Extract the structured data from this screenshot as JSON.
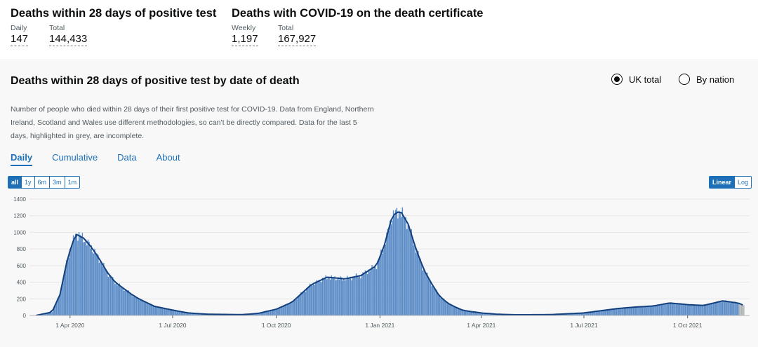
{
  "headline": {
    "left": {
      "title": "Deaths within 28 days of positive test",
      "metrics": [
        {
          "label": "Daily",
          "value": "147"
        },
        {
          "label": "Total",
          "value": "144,433"
        }
      ]
    },
    "right": {
      "title": "Deaths with COVID-19 on the death certificate",
      "metrics": [
        {
          "label": "Weekly",
          "value": "1,197"
        },
        {
          "label": "Total",
          "value": "167,927"
        }
      ]
    }
  },
  "card": {
    "title": "Deaths within 28 days of positive test by date of death",
    "radios": [
      {
        "label": "UK total",
        "selected": true
      },
      {
        "label": "By nation",
        "selected": false
      }
    ],
    "description": "Number of people who died within 28 days of their first positive test for COVID-19. Data from England, Northern Ireland, Scotland and Wales use different methodologies, so can’t be directly compared. Data for the last 5 days, highlighted in grey, are incomplete.",
    "tabs": [
      {
        "label": "Daily",
        "active": true
      },
      {
        "label": "Cumulative",
        "active": false
      },
      {
        "label": "Data",
        "active": false
      },
      {
        "label": "About",
        "active": false
      }
    ],
    "range_buttons": [
      {
        "label": "all",
        "active": true
      },
      {
        "label": "1y",
        "active": false
      },
      {
        "label": "6m",
        "active": false
      },
      {
        "label": "3m",
        "active": false
      },
      {
        "label": "1m",
        "active": false
      }
    ],
    "scale_buttons": [
      {
        "label": "Linear",
        "active": true
      },
      {
        "label": "Log",
        "active": false
      }
    ]
  },
  "colors": {
    "bar": "#5b8cc7",
    "bar_incomplete": "#b1b4b6",
    "line": "#12407f",
    "link": "#1d70b8"
  },
  "chart_data": {
    "type": "bar",
    "title": "",
    "xlabel": "",
    "ylabel": "",
    "ylim": [
      0,
      1400
    ],
    "y_ticks": [
      "0",
      "200",
      "400",
      "600",
      "800",
      "1000",
      "1200",
      "1400"
    ],
    "x_tick_labels": [
      "1 Apr 2020",
      "1 Jul 2020",
      "1 Oct 2020",
      "1 Jan 2021",
      "1 Apr 2021",
      "1 Jul 2021",
      "1 Oct 2021"
    ],
    "series": [
      {
        "kind": "bars",
        "x": [
          "2020-03-02",
          "2020-03-16",
          "2020-03-23",
          "2020-03-30",
          "2020-04-06",
          "2020-04-13",
          "2020-04-20",
          "2020-04-27",
          "2020-05-04",
          "2020-05-11",
          "2020-05-18",
          "2020-05-25",
          "2020-06-01",
          "2020-06-15",
          "2020-07-01",
          "2020-07-15",
          "2020-08-01",
          "2020-09-01",
          "2020-09-15",
          "2020-10-01",
          "2020-10-15",
          "2020-11-01",
          "2020-11-15",
          "2020-12-01",
          "2020-12-15",
          "2020-12-29",
          "2021-01-05",
          "2021-01-12",
          "2021-01-19",
          "2021-01-26",
          "2021-02-02",
          "2021-02-09",
          "2021-02-16",
          "2021-02-23",
          "2021-03-02",
          "2021-03-09",
          "2021-03-16",
          "2021-04-01",
          "2021-04-15",
          "2021-05-01",
          "2021-06-01",
          "2021-07-01",
          "2021-07-15",
          "2021-08-01",
          "2021-08-15",
          "2021-09-01",
          "2021-09-15",
          "2021-10-01",
          "2021-10-15",
          "2021-11-01",
          "2021-11-15",
          "2021-11-20"
        ],
        "values": [
          2,
          40,
          250,
          700,
          980,
          930,
          820,
          680,
          520,
          400,
          330,
          260,
          200,
          110,
          65,
          30,
          15,
          10,
          25,
          75,
          160,
          370,
          460,
          440,
          480,
          600,
          850,
          1200,
          1260,
          1100,
          800,
          550,
          380,
          230,
          150,
          100,
          60,
          30,
          15,
          8,
          10,
          30,
          55,
          85,
          100,
          115,
          150,
          130,
          120,
          175,
          150,
          120
        ]
      },
      {
        "kind": "line",
        "name": "",
        "x": [
          "2020-03-02",
          "2020-03-16",
          "2020-03-23",
          "2020-03-30",
          "2020-04-06",
          "2020-04-13",
          "2020-04-20",
          "2020-04-27",
          "2020-05-04",
          "2020-05-11",
          "2020-05-18",
          "2020-05-25",
          "2020-06-01",
          "2020-06-15",
          "2020-07-01",
          "2020-07-15",
          "2020-08-01",
          "2020-09-01",
          "2020-09-15",
          "2020-10-01",
          "2020-10-15",
          "2020-11-01",
          "2020-11-15",
          "2020-12-01",
          "2020-12-15",
          "2020-12-29",
          "2021-01-05",
          "2021-01-12",
          "2021-01-19",
          "2021-01-26",
          "2021-02-02",
          "2021-02-09",
          "2021-02-16",
          "2021-02-23",
          "2021-03-02",
          "2021-03-09",
          "2021-03-16",
          "2021-04-01",
          "2021-04-15",
          "2021-05-01",
          "2021-06-01",
          "2021-07-01",
          "2021-07-15",
          "2021-08-01",
          "2021-08-15",
          "2021-09-01",
          "2021-09-15",
          "2021-10-01",
          "2021-10-15",
          "2021-11-01",
          "2021-11-15",
          "2021-11-20"
        ],
        "values": [
          2,
          40,
          250,
          700,
          980,
          930,
          820,
          680,
          520,
          400,
          330,
          260,
          200,
          110,
          65,
          30,
          15,
          10,
          25,
          75,
          160,
          370,
          460,
          440,
          480,
          600,
          850,
          1200,
          1260,
          1100,
          800,
          550,
          380,
          230,
          150,
          100,
          60,
          30,
          15,
          8,
          10,
          30,
          55,
          85,
          100,
          115,
          150,
          130,
          120,
          175,
          150,
          120
        ]
      }
    ]
  }
}
